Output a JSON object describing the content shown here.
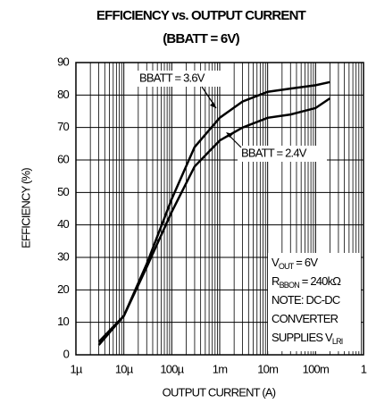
{
  "chart_data": {
    "type": "line",
    "title": "EFFICIENCY vs. OUTPUT CURRENT",
    "subtitle": "(BBATT = 6V)",
    "x_label": "OUTPUT CURRENT (A)",
    "y_label": "EFFICIENCY (%)",
    "x": [
      3e-06,
      1e-05,
      3e-05,
      0.0001,
      0.0003,
      0.001,
      0.003,
      0.01,
      0.03,
      0.1,
      0.2
    ],
    "series": [
      {
        "name": "BBATT = 3.6V",
        "color": "#000000",
        "values": [
          4,
          12,
          28,
          48,
          64,
          73,
          78,
          81,
          82,
          83,
          84
        ]
      },
      {
        "name": "BBATT = 2.4V",
        "color": "#000000",
        "values": [
          3,
          12,
          27,
          44,
          58,
          66,
          70,
          73,
          74,
          76,
          79
        ]
      }
    ],
    "xlim": [
      1e-06,
      1
    ],
    "xticks": [
      {
        "value": 1e-06,
        "label": "1µ"
      },
      {
        "value": 1e-05,
        "label": "10µ"
      },
      {
        "value": 0.0001,
        "label": "100µ"
      },
      {
        "value": 0.001,
        "label": "1m"
      },
      {
        "value": 0.01,
        "label": "10m"
      },
      {
        "value": 0.1,
        "label": "100m"
      },
      1
    ],
    "ylim": [
      0,
      90
    ],
    "yticks": [
      0,
      10,
      20,
      30,
      40,
      50,
      60,
      70,
      80,
      90
    ],
    "x_log": true,
    "grid": true,
    "note": [
      [
        "V",
        "OUT",
        " = 6V"
      ],
      [
        "R",
        "BBON",
        " = 240kΩ"
      ],
      [
        "NOTE: DC-DC"
      ],
      [
        "CONVERTER"
      ],
      [
        "SUPPLIES V",
        "LRI"
      ]
    ]
  }
}
